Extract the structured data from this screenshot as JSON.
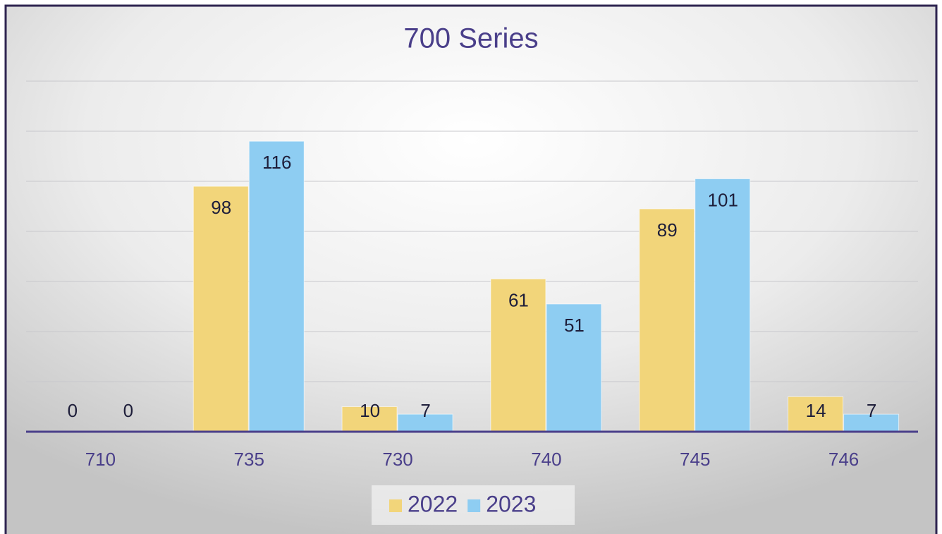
{
  "chart_data": {
    "type": "bar",
    "title": "700 Series",
    "categories": [
      "710",
      "735",
      "730",
      "740",
      "745",
      "746"
    ],
    "series": [
      {
        "name": "2022",
        "color": "#f2d57a",
        "values": [
          0,
          98,
          10,
          61,
          89,
          14
        ]
      },
      {
        "name": "2023",
        "color": "#8ecdf2",
        "values": [
          0,
          116,
          7,
          51,
          101,
          7
        ]
      }
    ],
    "ylim": [
      0,
      140
    ],
    "yticks": [
      0,
      20,
      40,
      60,
      80,
      100,
      120,
      140
    ],
    "grid": true,
    "legend": "bottom"
  }
}
